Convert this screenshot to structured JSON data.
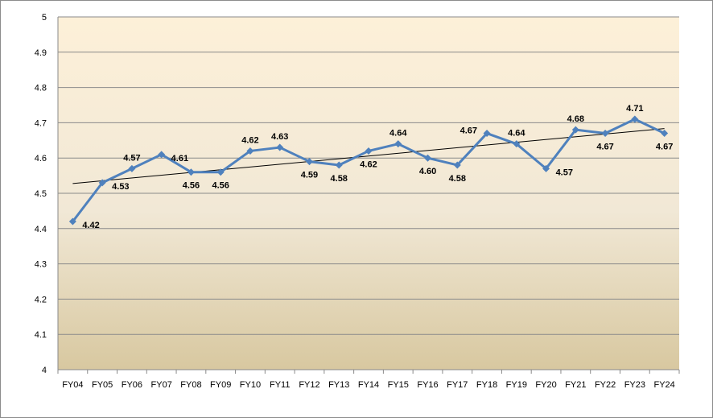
{
  "chart_data": {
    "type": "line",
    "title": "",
    "xlabel": "",
    "ylabel": "",
    "ylim": [
      4,
      5
    ],
    "yticks": [
      "4",
      "4.1",
      "4.2",
      "4.3",
      "4.4",
      "4.5",
      "4.6",
      "4.7",
      "4.8",
      "4.9",
      "5"
    ],
    "categories": [
      "FY04",
      "FY05",
      "FY06",
      "FY07",
      "FY08",
      "FY09",
      "FY10",
      "FY11",
      "FY12",
      "FY13",
      "FY14",
      "FY15",
      "FY16",
      "FY17",
      "FY18",
      "FY19",
      "FY20",
      "FY21",
      "FY22",
      "FY23",
      "FY24"
    ],
    "series": [
      {
        "name": "",
        "values": [
          4.42,
          4.53,
          4.57,
          4.61,
          4.56,
          4.56,
          4.62,
          4.63,
          4.59,
          4.58,
          4.62,
          4.64,
          4.6,
          4.58,
          4.67,
          4.64,
          4.57,
          4.68,
          4.67,
          4.71,
          4.67
        ],
        "labels": [
          "4.42",
          "4.53",
          "4.57",
          "4.61",
          "4.56",
          "4.56",
          "4.62",
          "4.63",
          "4.59",
          "4.58",
          "4.62",
          "4.64",
          "4.60",
          "4.58",
          "4.67",
          "4.64",
          "4.57",
          "4.68",
          "4.67",
          "4.71",
          "4.67"
        ],
        "color": "#4f81bd",
        "marker": "diamond"
      }
    ],
    "trendline": {
      "type": "linear",
      "color": "#000000"
    },
    "grid": true,
    "legend": "none",
    "plot_background": [
      "#fdf0d8",
      "#d8c8a0"
    ]
  }
}
